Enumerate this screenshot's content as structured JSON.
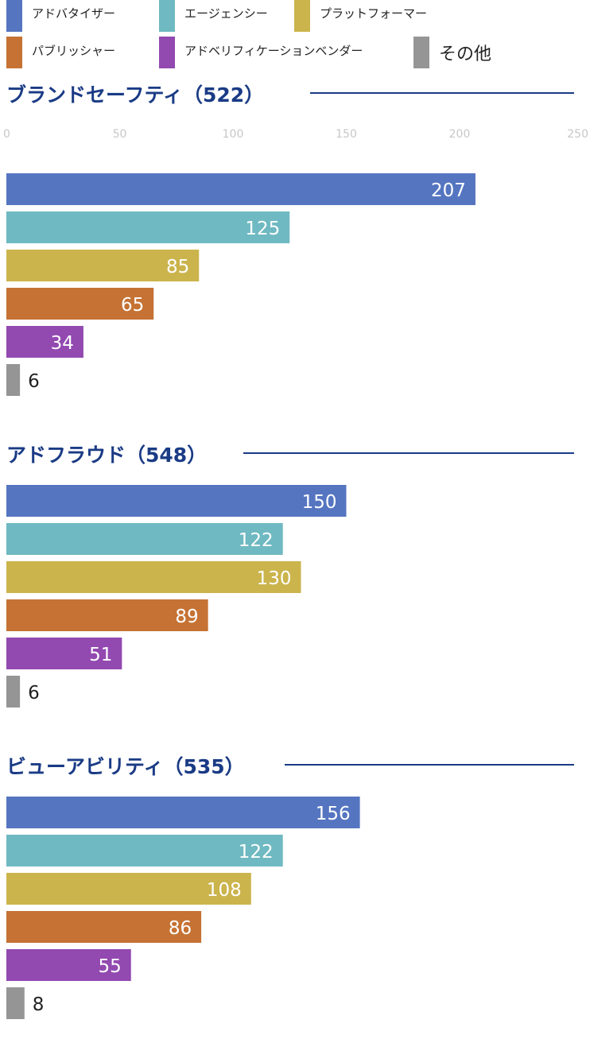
{
  "chart_data": {
    "type": "bar",
    "orientation": "horizontal",
    "xlim": [
      0,
      250
    ],
    "ticks": [
      0,
      50,
      100,
      150,
      200,
      250
    ],
    "grid": false,
    "legend_placement": "top",
    "series_names": [
      "アドバタイザー",
      "エージェンシー",
      "プラットフォーマー",
      "パブリッシャー",
      "アドベリフィケーションベンダー",
      "その他"
    ],
    "colors": {
      "series": [
        "#5575c1",
        "#6fb9c2",
        "#cbb44c",
        "#c57234",
        "#9249b0",
        "#959595"
      ],
      "title": "#1a3b85",
      "rule": "#1a3b85",
      "tick": "#c7c7c7",
      "label_inside": "#ffffff",
      "label_outside": "#222222"
    },
    "groups": [
      {
        "title": "ブランドセーフティ（522）",
        "values": [
          207,
          125,
          85,
          65,
          34,
          6
        ]
      },
      {
        "title": "アドフラウド（548）",
        "values": [
          150,
          122,
          130,
          89,
          51,
          6
        ]
      },
      {
        "title": "ビューアビリティ（535）",
        "values": [
          156,
          122,
          108,
          86,
          55,
          8
        ]
      }
    ]
  }
}
